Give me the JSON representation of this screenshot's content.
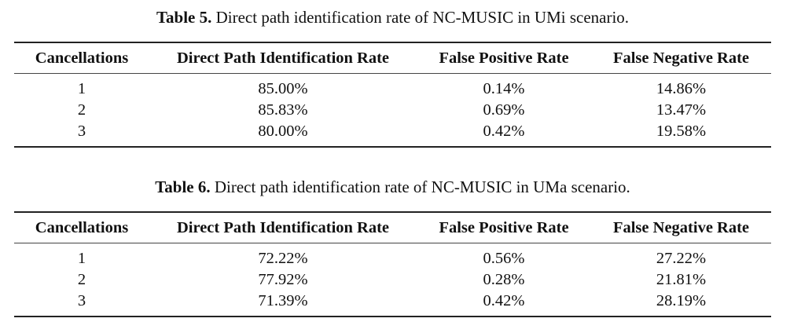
{
  "tables": [
    {
      "caption_label": "Table 5.",
      "caption_text": "Direct path identification rate of NC-MUSIC in UMi scenario.",
      "headers": [
        "Cancellations",
        "Direct Path Identification Rate",
        "False Positive Rate",
        "False Negative Rate"
      ],
      "rows": [
        [
          "1",
          "85.00%",
          "0.14%",
          "14.86%"
        ],
        [
          "2",
          "85.83%",
          "0.69%",
          "13.47%"
        ],
        [
          "3",
          "80.00%",
          "0.42%",
          "19.58%"
        ]
      ]
    },
    {
      "caption_label": "Table 6.",
      "caption_text": "Direct path identification rate of NC-MUSIC in UMa scenario.",
      "headers": [
        "Cancellations",
        "Direct Path Identification Rate",
        "False Positive Rate",
        "False Negative Rate"
      ],
      "rows": [
        [
          "1",
          "72.22%",
          "0.56%",
          "27.22%"
        ],
        [
          "2",
          "77.92%",
          "0.28%",
          "21.81%"
        ],
        [
          "3",
          "71.39%",
          "0.42%",
          "28.19%"
        ]
      ]
    }
  ]
}
